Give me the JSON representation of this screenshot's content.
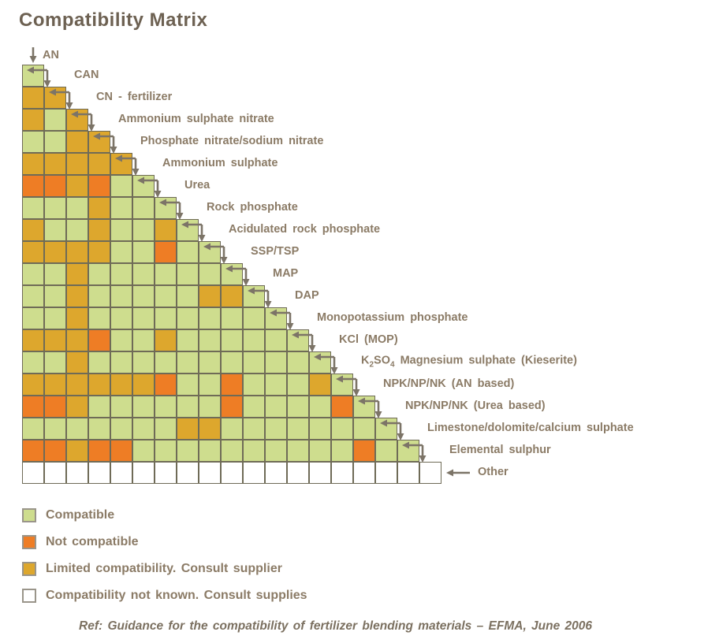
{
  "title": "Compatibility Matrix",
  "footer": "Ref: Guidance for the compatibility of fertilizer blending materials – EFMA, June 2006",
  "legend": [
    {
      "key": "G",
      "label": "Compatible"
    },
    {
      "key": "O",
      "label": "Not compatible"
    },
    {
      "key": "Y",
      "label": "Limited compatibility.  Consult supplier"
    },
    {
      "key": "W",
      "label": "Compatibility not known. Consult supplies"
    }
  ],
  "chart_data": {
    "type": "heatmap",
    "subtype": "lower-triangle-compatibility-matrix",
    "legend_position": "bottom-left",
    "grid": "on",
    "column_header": {
      "label": "AN"
    },
    "codes": {
      "G": "compatible",
      "O": "not_compatible",
      "Y": "limited_compatibility_consult_supplier",
      "W": "compatibility_not_known"
    },
    "colors": {
      "G": "#cedd8e",
      "O": "#ee7d25",
      "Y": "#dda72d",
      "W": "#ffffff",
      "border": "#6f6b57",
      "arrow": "#7c7467",
      "label_text": "#8b7b66"
    },
    "materials_order": [
      "AN",
      "CAN",
      "CN - fertilizer",
      "Ammonium sulphate nitrate",
      "Phosphate nitrate/sodium nitrate",
      "Ammonium sulphate",
      "Urea",
      "Rock phosphate",
      "Acidulated rock phosphate",
      "SSP/TSP",
      "MAP",
      "DAP",
      "Monopotassium phosphate",
      "KCl (MOP)",
      "K2SO4 Magnesium sulphate (Kieserite)",
      "NPK/NP/NK (AN based)",
      "NPK/NP/NK (Urea based)",
      "Limestone/dolomite/calcium sulphate",
      "Elemental sulphur",
      "Other"
    ],
    "rows": [
      {
        "label": "CAN",
        "cells": [
          "G"
        ]
      },
      {
        "label": "CN - fertilizer",
        "cells": [
          "Y",
          "Y"
        ]
      },
      {
        "label": "Ammonium sulphate nitrate",
        "cells": [
          "Y",
          "G",
          "Y"
        ]
      },
      {
        "label": "Phosphate nitrate/sodium nitrate",
        "cells": [
          "G",
          "G",
          "Y",
          "Y"
        ]
      },
      {
        "label": "Ammonium sulphate",
        "cells": [
          "Y",
          "Y",
          "Y",
          "Y",
          "Y"
        ]
      },
      {
        "label": "Urea",
        "cells": [
          "O",
          "O",
          "Y",
          "O",
          "G",
          "G"
        ]
      },
      {
        "label": "Rock phosphate",
        "cells": [
          "G",
          "G",
          "G",
          "Y",
          "G",
          "G",
          "G"
        ]
      },
      {
        "label": "Acidulated rock phosphate",
        "cells": [
          "Y",
          "G",
          "G",
          "Y",
          "G",
          "G",
          "Y",
          "G"
        ]
      },
      {
        "label": "SSP/TSP",
        "cells": [
          "Y",
          "Y",
          "Y",
          "Y",
          "G",
          "G",
          "O",
          "G",
          "G"
        ]
      },
      {
        "label": "MAP",
        "cells": [
          "G",
          "G",
          "Y",
          "G",
          "G",
          "G",
          "G",
          "G",
          "G",
          "G"
        ]
      },
      {
        "label": "DAP",
        "cells": [
          "G",
          "G",
          "Y",
          "G",
          "G",
          "G",
          "G",
          "G",
          "Y",
          "Y",
          "G"
        ]
      },
      {
        "label": "Monopotassium phosphate",
        "cells": [
          "G",
          "G",
          "Y",
          "G",
          "G",
          "G",
          "G",
          "G",
          "G",
          "G",
          "G",
          "G"
        ]
      },
      {
        "label": "KCl (MOP)",
        "cells": [
          "Y",
          "Y",
          "Y",
          "O",
          "G",
          "G",
          "Y",
          "G",
          "G",
          "G",
          "G",
          "G",
          "G"
        ]
      },
      {
        "label": "K2SO4 Magnesium sulphate (Kieserite)",
        "label_parts": [
          {
            "t": "K"
          },
          {
            "t": "2",
            "sub": true
          },
          {
            "t": "SO"
          },
          {
            "t": "4",
            "sub": true
          },
          {
            "t": " Magnesium sulphate (Kieserite)"
          }
        ],
        "cells": [
          "G",
          "G",
          "Y",
          "G",
          "G",
          "G",
          "G",
          "G",
          "G",
          "G",
          "G",
          "G",
          "G",
          "G"
        ]
      },
      {
        "label": "NPK/NP/NK (AN based)",
        "cells": [
          "Y",
          "Y",
          "Y",
          "Y",
          "Y",
          "Y",
          "O",
          "G",
          "G",
          "O",
          "G",
          "G",
          "G",
          "Y",
          "G"
        ]
      },
      {
        "label": "NPK/NP/NK (Urea based)",
        "cells": [
          "O",
          "O",
          "Y",
          "G",
          "G",
          "G",
          "G",
          "G",
          "G",
          "O",
          "G",
          "G",
          "G",
          "G",
          "O",
          "G"
        ]
      },
      {
        "label": "Limestone/dolomite/calcium sulphate",
        "cells": [
          "G",
          "G",
          "G",
          "G",
          "G",
          "G",
          "G",
          "Y",
          "Y",
          "G",
          "G",
          "G",
          "G",
          "G",
          "G",
          "G",
          "G"
        ]
      },
      {
        "label": "Elemental sulphur",
        "cells": [
          "O",
          "O",
          "Y",
          "O",
          "O",
          "G",
          "G",
          "G",
          "G",
          "G",
          "G",
          "G",
          "G",
          "G",
          "G",
          "O",
          "G",
          "G"
        ]
      },
      {
        "label": "Other",
        "cells": [
          "W",
          "W",
          "W",
          "W",
          "W",
          "W",
          "W",
          "W",
          "W",
          "W",
          "W",
          "W",
          "W",
          "W",
          "W",
          "W",
          "W",
          "W",
          "W"
        ],
        "arrow": "left"
      }
    ]
  }
}
